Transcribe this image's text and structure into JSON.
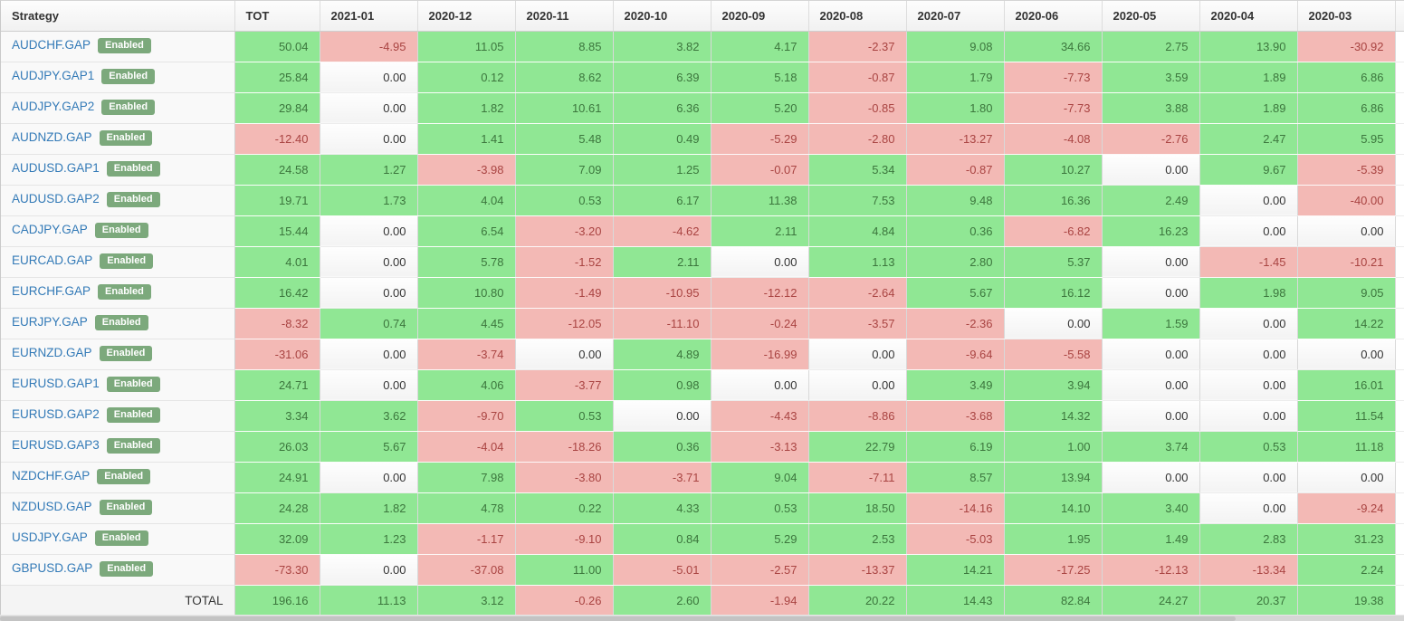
{
  "table": {
    "columns": [
      "Strategy",
      "TOT",
      "2021-01",
      "2020-12",
      "2020-11",
      "2020-10",
      "2020-09",
      "2020-08",
      "2020-07",
      "2020-06",
      "2020-05",
      "2020-04",
      "2020-03"
    ],
    "rows": [
      {
        "name": "AUDCHF.GAP",
        "status": "Enabled",
        "values": [
          50.04,
          -4.95,
          11.05,
          8.85,
          3.82,
          4.17,
          -2.37,
          9.08,
          34.66,
          2.75,
          13.9,
          -30.92
        ]
      },
      {
        "name": "AUDJPY.GAP1",
        "status": "Enabled",
        "values": [
          25.84,
          0.0,
          0.12,
          8.62,
          6.39,
          5.18,
          -0.87,
          1.79,
          -7.73,
          3.59,
          1.89,
          6.86
        ]
      },
      {
        "name": "AUDJPY.GAP2",
        "status": "Enabled",
        "values": [
          29.84,
          0.0,
          1.82,
          10.61,
          6.36,
          5.2,
          -0.85,
          1.8,
          -7.73,
          3.88,
          1.89,
          6.86
        ]
      },
      {
        "name": "AUDNZD.GAP",
        "status": "Enabled",
        "values": [
          -12.4,
          0.0,
          1.41,
          5.48,
          0.49,
          -5.29,
          -2.8,
          -13.27,
          -4.08,
          -2.76,
          2.47,
          5.95
        ]
      },
      {
        "name": "AUDUSD.GAP1",
        "status": "Enabled",
        "values": [
          24.58,
          1.27,
          -3.98,
          7.09,
          1.25,
          -0.07,
          5.34,
          -0.87,
          10.27,
          0.0,
          9.67,
          -5.39
        ]
      },
      {
        "name": "AUDUSD.GAP2",
        "status": "Enabled",
        "values": [
          19.71,
          1.73,
          4.04,
          0.53,
          6.17,
          11.38,
          7.53,
          9.48,
          16.36,
          2.49,
          0.0,
          -40.0
        ]
      },
      {
        "name": "CADJPY.GAP",
        "status": "Enabled",
        "values": [
          15.44,
          0.0,
          6.54,
          -3.2,
          -4.62,
          2.11,
          4.84,
          0.36,
          -6.82,
          16.23,
          0.0,
          0.0
        ]
      },
      {
        "name": "EURCAD.GAP",
        "status": "Enabled",
        "values": [
          4.01,
          0.0,
          5.78,
          -1.52,
          2.11,
          0.0,
          1.13,
          2.8,
          5.37,
          0.0,
          -1.45,
          -10.21
        ]
      },
      {
        "name": "EURCHF.GAP",
        "status": "Enabled",
        "values": [
          16.42,
          0.0,
          10.8,
          -1.49,
          -10.95,
          -12.12,
          -2.64,
          5.67,
          16.12,
          0.0,
          1.98,
          9.05
        ]
      },
      {
        "name": "EURJPY.GAP",
        "status": "Enabled",
        "values": [
          -8.32,
          0.74,
          4.45,
          -12.05,
          -11.1,
          -0.24,
          -3.57,
          -2.36,
          0.0,
          1.59,
          0.0,
          14.22
        ]
      },
      {
        "name": "EURNZD.GAP",
        "status": "Enabled",
        "values": [
          -31.06,
          0.0,
          -3.74,
          0.0,
          4.89,
          -16.99,
          0.0,
          -9.64,
          -5.58,
          0.0,
          0.0,
          0.0
        ]
      },
      {
        "name": "EURUSD.GAP1",
        "status": "Enabled",
        "values": [
          24.71,
          0.0,
          4.06,
          -3.77,
          0.98,
          0.0,
          0.0,
          3.49,
          3.94,
          0.0,
          0.0,
          16.01
        ]
      },
      {
        "name": "EURUSD.GAP2",
        "status": "Enabled",
        "values": [
          3.34,
          3.62,
          -9.7,
          0.53,
          0.0,
          -4.43,
          -8.86,
          -3.68,
          14.32,
          0.0,
          0.0,
          11.54
        ]
      },
      {
        "name": "EURUSD.GAP3",
        "status": "Enabled",
        "values": [
          26.03,
          5.67,
          -4.04,
          -18.26,
          0.36,
          -3.13,
          22.79,
          6.19,
          1.0,
          3.74,
          0.53,
          11.18
        ]
      },
      {
        "name": "NZDCHF.GAP",
        "status": "Enabled",
        "values": [
          24.91,
          0.0,
          7.98,
          -3.8,
          -3.71,
          9.04,
          -7.11,
          8.57,
          13.94,
          0.0,
          0.0,
          0.0
        ]
      },
      {
        "name": "NZDUSD.GAP",
        "status": "Enabled",
        "values": [
          24.28,
          1.82,
          4.78,
          0.22,
          4.33,
          0.53,
          18.5,
          -14.16,
          14.1,
          3.4,
          0.0,
          -9.24
        ]
      },
      {
        "name": "USDJPY.GAP",
        "status": "Enabled",
        "values": [
          32.09,
          1.23,
          -1.17,
          -9.1,
          0.84,
          5.29,
          2.53,
          -5.03,
          1.95,
          1.49,
          2.83,
          31.23
        ]
      },
      {
        "name": "GBPUSD.GAP",
        "status": "Enabled",
        "values": [
          -73.3,
          0.0,
          -37.08,
          11.0,
          -5.01,
          -2.57,
          -13.37,
          14.21,
          -17.25,
          -12.13,
          -13.34,
          2.24
        ]
      }
    ],
    "total_row": {
      "label": "TOTAL",
      "values": [
        196.16,
        11.13,
        3.12,
        -0.26,
        2.6,
        -1.94,
        20.22,
        14.43,
        82.84,
        24.27,
        20.37,
        19.38
      ]
    }
  },
  "colors": {
    "positive_bg": "#90e794",
    "negative_bg": "#f3b9b5",
    "positive_text": "#3c763d",
    "negative_text": "#a94442",
    "zero_text": "#333333",
    "link": "#337ab7",
    "badge_bg": "#7ca97c"
  }
}
